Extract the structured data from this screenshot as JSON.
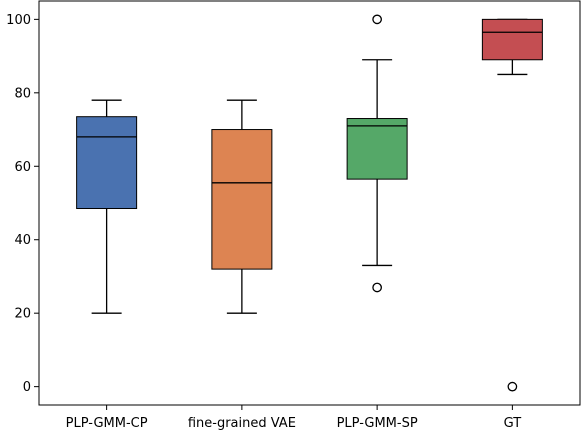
{
  "chart_data": {
    "type": "box",
    "title": "",
    "xlabel": "",
    "ylabel": "",
    "ylim": [
      -5,
      105
    ],
    "yticks": [
      0,
      20,
      40,
      60,
      80,
      100
    ],
    "grid": false,
    "categories": [
      "PLP-GMM-CP",
      "fine-grained VAE",
      "PLP-GMM-SP",
      "GT"
    ],
    "boxes": [
      {
        "category": "PLP-GMM-CP",
        "color": "#4a72b0",
        "whisker_low": 20,
        "q1": 48.5,
        "median": 68,
        "q3": 73.5,
        "whisker_high": 78,
        "outliers": []
      },
      {
        "category": "fine-grained VAE",
        "color": "#dd8452",
        "whisker_low": 20,
        "q1": 32,
        "median": 55.5,
        "q3": 70,
        "whisker_high": 78,
        "outliers": []
      },
      {
        "category": "PLP-GMM-SP",
        "color": "#55a868",
        "whisker_low": 33,
        "q1": 56.5,
        "median": 71,
        "q3": 73,
        "whisker_high": 89,
        "outliers": [
          100,
          27
        ]
      },
      {
        "category": "GT",
        "color": "#c44e52",
        "whisker_low": 85,
        "q1": 89,
        "median": 96.5,
        "q3": 100,
        "whisker_high": 100,
        "outliers": [
          0
        ]
      }
    ]
  }
}
